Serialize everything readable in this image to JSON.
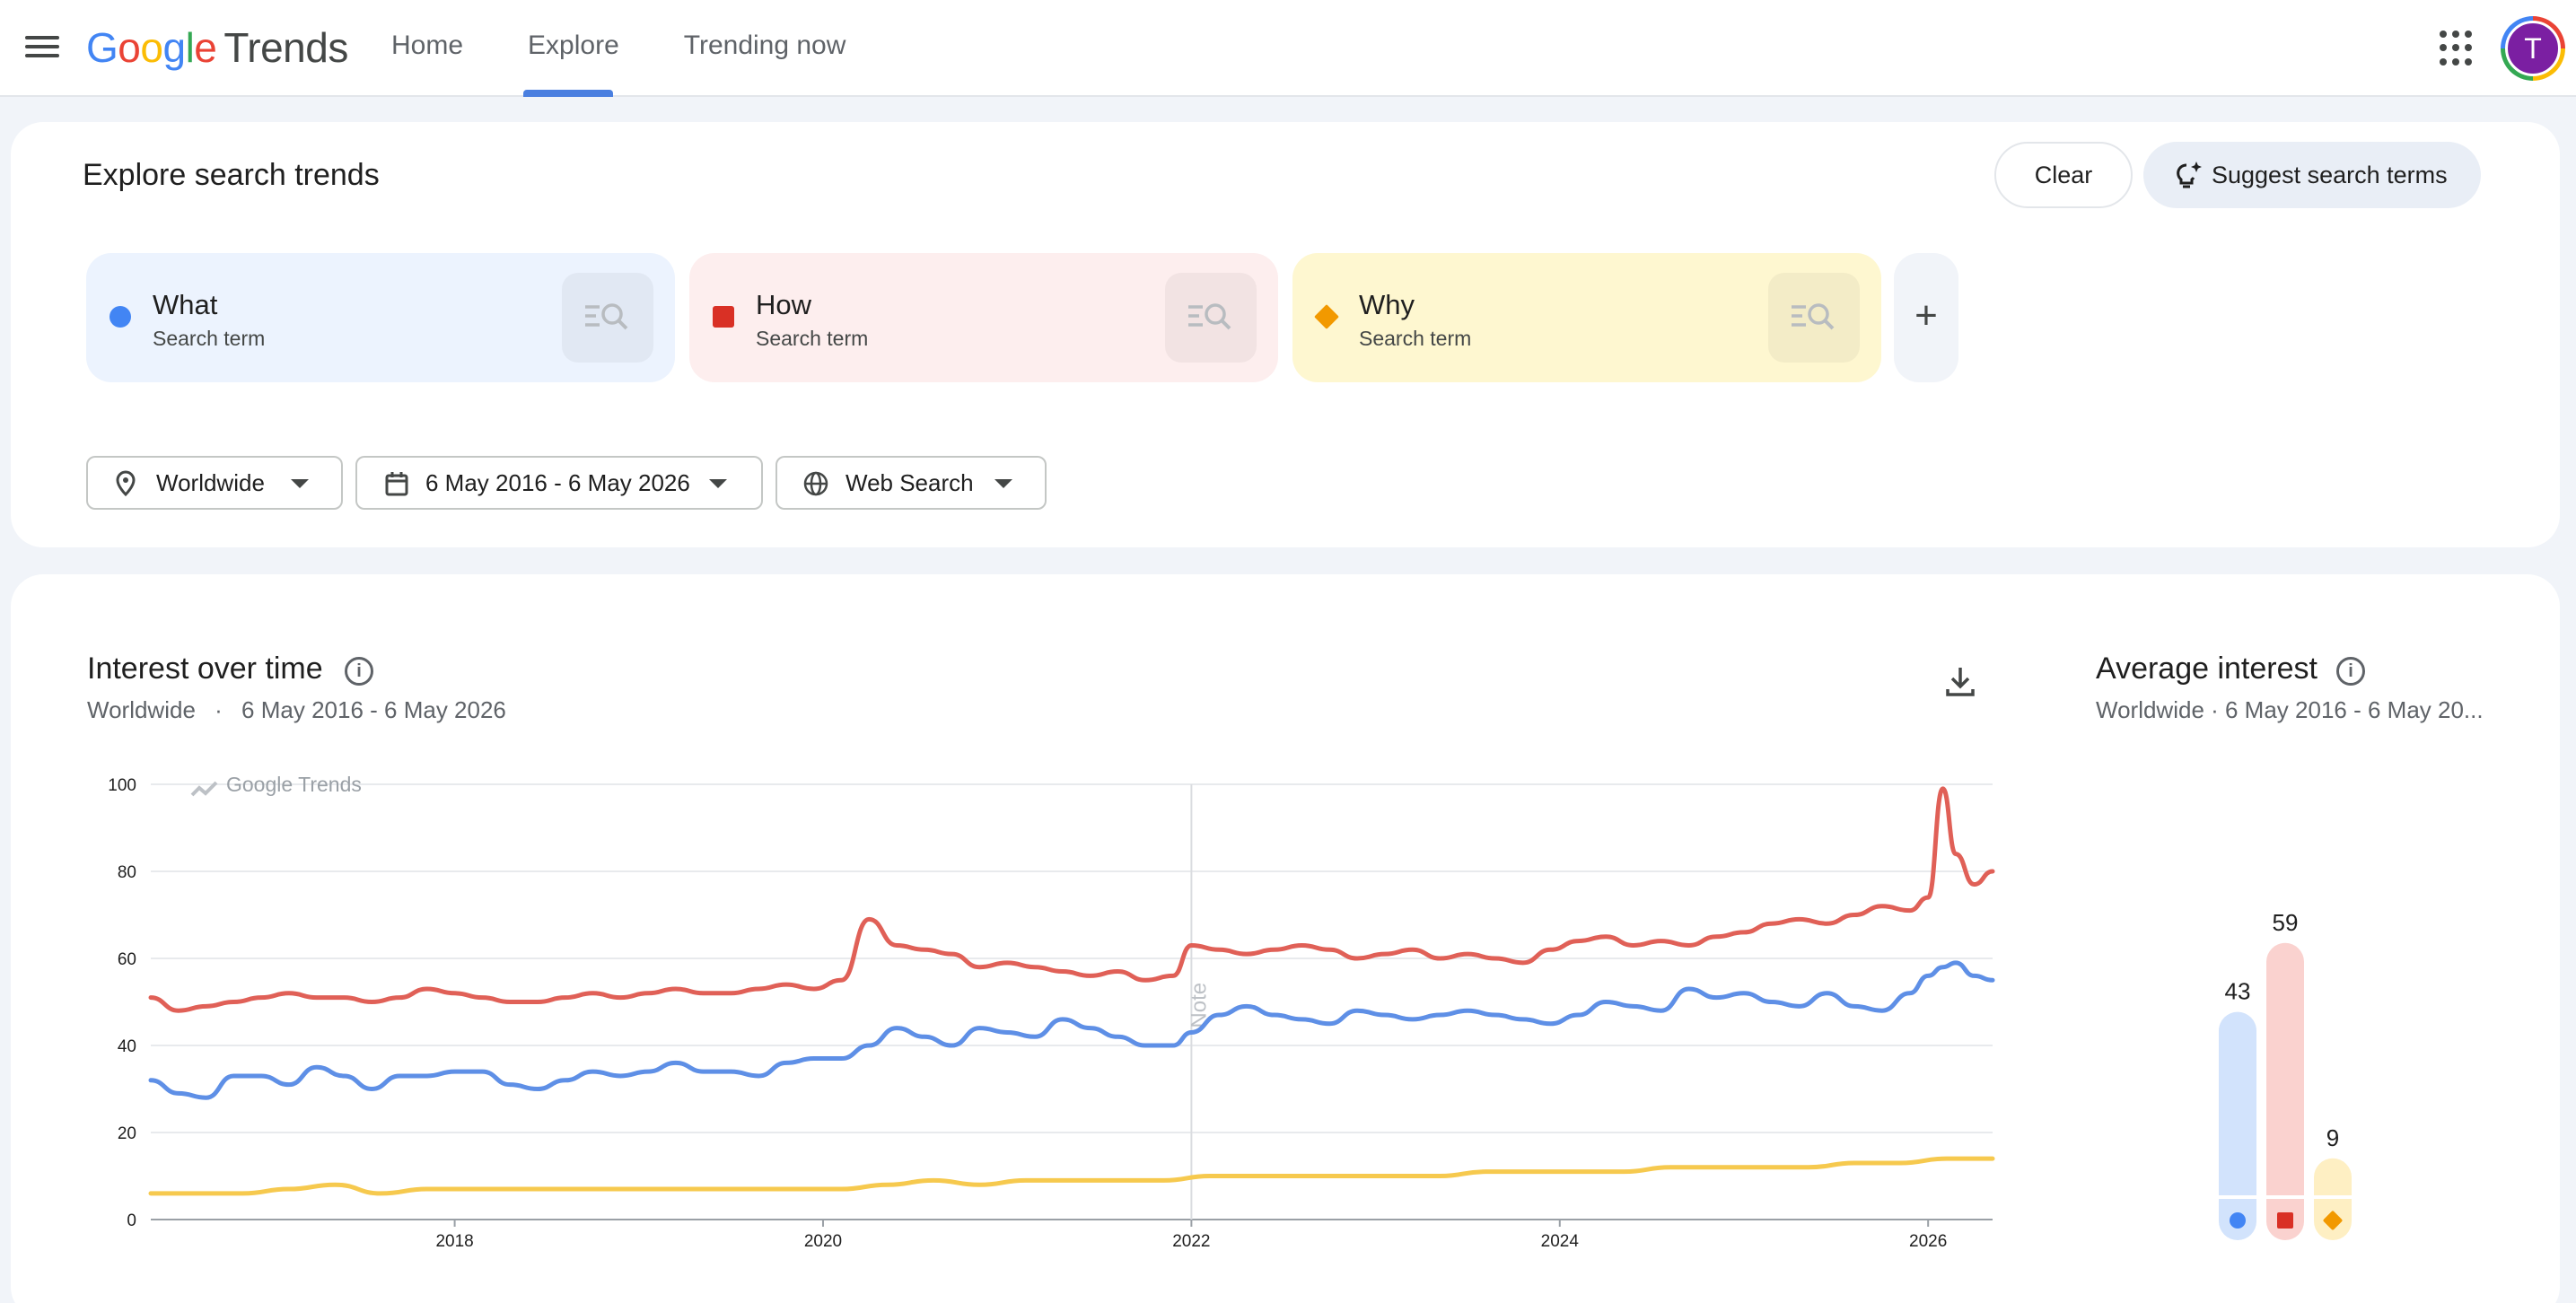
{
  "header": {
    "logo_google": [
      "G",
      "o",
      "o",
      "g",
      "l",
      "e"
    ],
    "logo_product": "Trends",
    "nav": [
      {
        "label": "Home"
      },
      {
        "label": "Explore"
      },
      {
        "label": "Trending now"
      }
    ],
    "active_nav": "Explore",
    "avatar_letter": "T"
  },
  "explore": {
    "title": "Explore search trends",
    "clear_label": "Clear",
    "suggest_label": "Suggest search terms",
    "terms": [
      {
        "name": "What",
        "sub": "Search term",
        "color": "#4285f4",
        "bg": "#ecf3fe",
        "shape": "circle"
      },
      {
        "name": "How",
        "sub": "Search term",
        "color": "#d93025",
        "bg": "#fdeeee",
        "shape": "square"
      },
      {
        "name": "Why",
        "sub": "Search term",
        "color": "#f29900",
        "bg": "#fef7d0",
        "shape": "diamond"
      }
    ],
    "add_label": "+",
    "filters": {
      "location": "Worldwide",
      "date_range": "6 May 2016 - 6 May 2026",
      "search_type": "Web Search"
    }
  },
  "interest_over_time": {
    "title": "Interest over time",
    "subtitle_location": "Worldwide",
    "subtitle_sep": "·",
    "subtitle_range": "6 May 2016 - 6 May 2026",
    "watermark": "Google Trends",
    "note_label": "Note"
  },
  "average_interest": {
    "title": "Average interest",
    "subtitle": "Worldwide  ·  6 May 2016 - 6 May 20..."
  },
  "chart_data": [
    {
      "type": "line",
      "ylim": [
        0,
        100
      ],
      "yticks": [
        0,
        20,
        40,
        60,
        80,
        100
      ],
      "xlim": [
        2016.35,
        2026.35
      ],
      "xticks": [
        2018,
        2020,
        2022,
        2024,
        2026
      ],
      "note_x": 2022,
      "series": [
        {
          "name": "What",
          "color": "#5e8fe6",
          "x": [
            2016.35,
            2016.5,
            2016.65,
            2016.8,
            2016.95,
            2017.1,
            2017.25,
            2017.4,
            2017.55,
            2017.7,
            2017.85,
            2018.0,
            2018.15,
            2018.3,
            2018.45,
            2018.6,
            2018.75,
            2018.9,
            2019.05,
            2019.2,
            2019.35,
            2019.5,
            2019.65,
            2019.8,
            2019.95,
            2020.1,
            2020.25,
            2020.4,
            2020.55,
            2020.7,
            2020.85,
            2021.0,
            2021.15,
            2021.3,
            2021.45,
            2021.6,
            2021.75,
            2021.9,
            2022.0,
            2022.15,
            2022.3,
            2022.45,
            2022.6,
            2022.75,
            2022.9,
            2023.05,
            2023.2,
            2023.35,
            2023.5,
            2023.65,
            2023.8,
            2023.95,
            2024.1,
            2024.25,
            2024.4,
            2024.55,
            2024.7,
            2024.85,
            2025.0,
            2025.15,
            2025.3,
            2025.45,
            2025.6,
            2025.75,
            2025.9,
            2026.0,
            2026.08,
            2026.15,
            2026.25,
            2026.35
          ],
          "y": [
            32,
            29,
            28,
            33,
            33,
            31,
            35,
            33,
            30,
            33,
            33,
            34,
            34,
            31,
            30,
            32,
            34,
            33,
            34,
            36,
            34,
            34,
            33,
            36,
            37,
            37,
            40,
            44,
            42,
            40,
            44,
            43,
            42,
            46,
            44,
            42,
            40,
            40,
            43,
            47,
            49,
            47,
            46,
            45,
            48,
            47,
            46,
            47,
            48,
            47,
            46,
            45,
            47,
            50,
            49,
            48,
            53,
            51,
            52,
            50,
            49,
            52,
            49,
            48,
            52,
            56,
            58,
            59,
            56,
            55
          ],
          "y_scale_note": ""
        },
        {
          "name": "How",
          "color": "#e06057",
          "x": [
            2016.35,
            2016.5,
            2016.65,
            2016.8,
            2016.95,
            2017.1,
            2017.25,
            2017.4,
            2017.55,
            2017.7,
            2017.85,
            2018.0,
            2018.15,
            2018.3,
            2018.45,
            2018.6,
            2018.75,
            2018.9,
            2019.05,
            2019.2,
            2019.35,
            2019.5,
            2019.65,
            2019.8,
            2019.95,
            2020.1,
            2020.25,
            2020.4,
            2020.55,
            2020.7,
            2020.85,
            2021.0,
            2021.15,
            2021.3,
            2021.45,
            2021.6,
            2021.75,
            2021.9,
            2022.0,
            2022.15,
            2022.3,
            2022.45,
            2022.6,
            2022.75,
            2022.9,
            2023.05,
            2023.2,
            2023.35,
            2023.5,
            2023.65,
            2023.8,
            2023.95,
            2024.1,
            2024.25,
            2024.4,
            2024.55,
            2024.7,
            2024.85,
            2025.0,
            2025.15,
            2025.3,
            2025.45,
            2025.6,
            2025.75,
            2025.9,
            2026.0,
            2026.08,
            2026.15,
            2026.25,
            2026.35
          ],
          "y": [
            51,
            48,
            49,
            50,
            51,
            52,
            51,
            51,
            50,
            51,
            53,
            52,
            51,
            50,
            50,
            51,
            52,
            51,
            52,
            53,
            52,
            52,
            53,
            54,
            53,
            55,
            69,
            63,
            62,
            61,
            58,
            59,
            58,
            57,
            56,
            57,
            55,
            56,
            63,
            62,
            61,
            62,
            63,
            62,
            60,
            61,
            62,
            60,
            61,
            60,
            59,
            62,
            64,
            65,
            63,
            64,
            63,
            65,
            66,
            68,
            69,
            68,
            70,
            72,
            71,
            74,
            99,
            84,
            77,
            80
          ]
        },
        {
          "name": "Why",
          "color": "#f6c94e",
          "x": [
            2016.35,
            2016.6,
            2016.85,
            2017.1,
            2017.35,
            2017.6,
            2017.85,
            2018.1,
            2018.35,
            2018.6,
            2018.85,
            2019.1,
            2019.35,
            2019.6,
            2019.85,
            2020.1,
            2020.35,
            2020.6,
            2020.85,
            2021.1,
            2021.35,
            2021.6,
            2021.85,
            2022.1,
            2022.35,
            2022.6,
            2022.85,
            2023.1,
            2023.35,
            2023.6,
            2023.85,
            2024.1,
            2024.35,
            2024.6,
            2024.85,
            2025.1,
            2025.35,
            2025.6,
            2025.85,
            2026.1,
            2026.35
          ],
          "y": [
            6,
            6,
            6,
            7,
            8,
            6,
            7,
            7,
            7,
            7,
            7,
            7,
            7,
            7,
            7,
            7,
            8,
            9,
            8,
            9,
            9,
            9,
            9,
            10,
            10,
            10,
            10,
            10,
            10,
            11,
            11,
            11,
            11,
            12,
            12,
            12,
            12,
            13,
            13,
            14,
            14
          ]
        }
      ]
    },
    {
      "type": "bar",
      "title": "Average interest",
      "categories": [
        "What",
        "How",
        "Why"
      ],
      "values": [
        43,
        59,
        9
      ],
      "colors": [
        "#4285f4",
        "#d93025",
        "#f29900"
      ],
      "bar_colors": [
        "#d2e3fc",
        "#fad2cf",
        "#feefc3"
      ],
      "ylim": [
        0,
        100
      ]
    }
  ]
}
